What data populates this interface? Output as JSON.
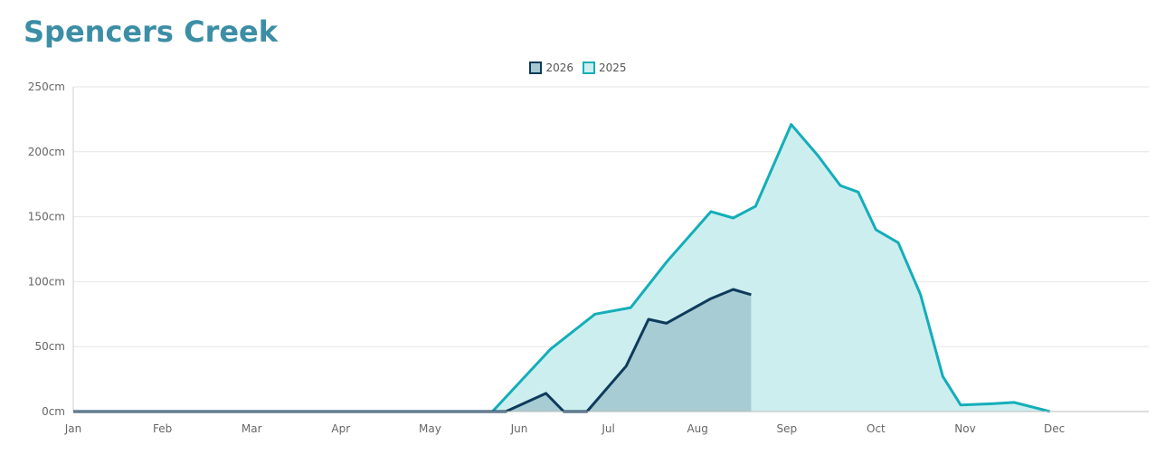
{
  "title": "Spencers Creek",
  "chart_data": {
    "type": "area",
    "title": "Spencers Creek",
    "x_categories": [
      "Jan",
      "Feb",
      "Mar",
      "Apr",
      "May",
      "Jun",
      "Jul",
      "Aug",
      "Sep",
      "Oct",
      "Nov",
      "Dec"
    ],
    "y_ticks": [
      "0cm",
      "50cm",
      "100cm",
      "150cm",
      "200cm",
      "250cm"
    ],
    "ylim": [
      0,
      250
    ],
    "xlim": [
      1,
      13.0
    ],
    "grid": true,
    "legend_position": "top-center",
    "series": [
      {
        "name": "2026",
        "color": "#0e3b5c",
        "fill": "#a4c9d1",
        "points": [
          [
            1,
            0
          ],
          [
            5.85,
            0
          ],
          [
            6.3,
            14
          ],
          [
            6.5,
            0
          ],
          [
            6.76,
            0
          ],
          [
            7.2,
            35
          ],
          [
            7.45,
            71
          ],
          [
            7.65,
            68
          ],
          [
            8.15,
            87
          ],
          [
            8.4,
            94
          ],
          [
            8.6,
            90
          ]
        ]
      },
      {
        "name": "2025",
        "color": "#13aeb9",
        "fill": "#cdeeef",
        "points": [
          [
            1,
            0
          ],
          [
            5.7,
            0
          ],
          [
            6.35,
            48
          ],
          [
            6.85,
            75
          ],
          [
            7.25,
            80
          ],
          [
            7.65,
            115
          ],
          [
            8.15,
            154
          ],
          [
            8.4,
            149
          ],
          [
            8.65,
            158
          ],
          [
            9.05,
            221
          ],
          [
            9.35,
            197
          ],
          [
            9.6,
            174
          ],
          [
            9.8,
            169
          ],
          [
            10.0,
            140
          ],
          [
            10.25,
            130
          ],
          [
            10.5,
            90
          ],
          [
            10.75,
            27
          ],
          [
            10.95,
            5
          ],
          [
            11.3,
            6
          ],
          [
            11.55,
            7
          ],
          [
            11.95,
            0
          ]
        ]
      }
    ]
  }
}
